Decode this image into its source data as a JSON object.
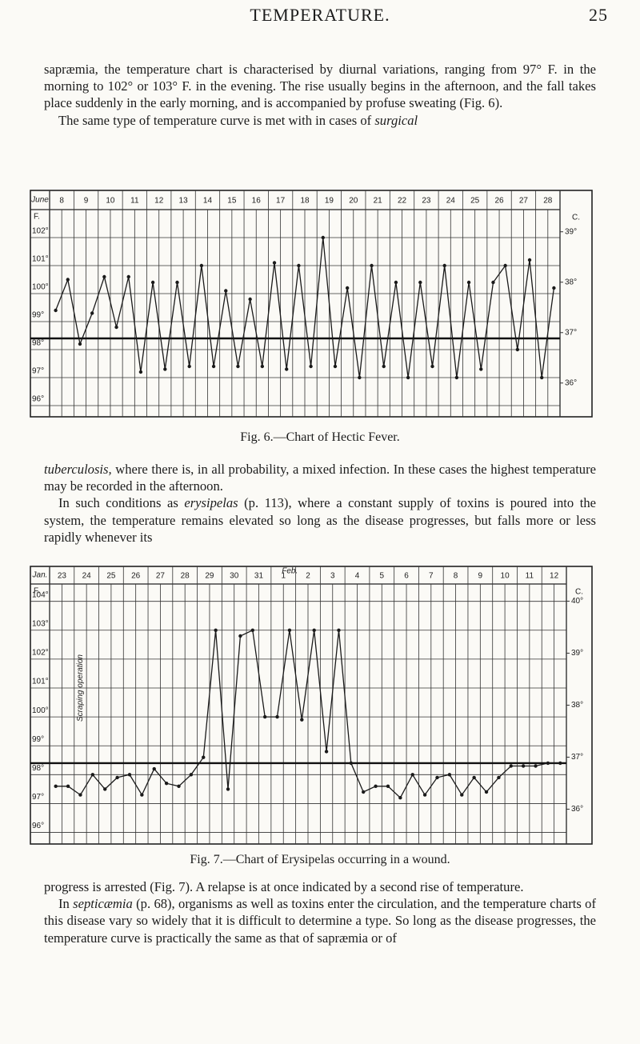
{
  "header": {
    "title": "TEMPERATURE.",
    "page": "25"
  },
  "paragraphs": [
    {
      "indent": false,
      "runs": [
        {
          "text": "sapræmia, the temperature chart is characterised by diurnal variations, ranging from 97° F. in the morning to 102° or 103° F. in the evening. The rise usually begins in the afternoon, and the fall takes place suddenly in the early morning, and is accompanied by profuse sweating (Fig. 6).",
          "italic": false
        }
      ]
    },
    {
      "indent": true,
      "runs": [
        {
          "text": "The same type of temperature curve is met with in cases of ",
          "italic": false
        },
        {
          "text": "surgical",
          "italic": true
        }
      ]
    },
    {
      "indent": false,
      "runs": [
        {
          "text": "tuberculosis,",
          "italic": true
        },
        {
          "text": " where there is, in all probability, a mixed infection. In these cases the highest temperature may be recorded in the afternoon.",
          "italic": false
        }
      ]
    },
    {
      "indent": true,
      "runs": [
        {
          "text": "In such conditions as ",
          "italic": false
        },
        {
          "text": "erysipelas",
          "italic": true
        },
        {
          "text": " (p. 113), where a constant supply of toxins is poured into the system, the temperature remains elevated so long as the disease progresses, but falls more or less rapidly whenever its",
          "italic": false
        }
      ]
    },
    {
      "indent": false,
      "runs": [
        {
          "text": "progress is arrested (Fig. 7). A relapse is at once indicated by a second rise of temperature.",
          "italic": false
        }
      ]
    },
    {
      "indent": true,
      "runs": [
        {
          "text": "In ",
          "italic": false
        },
        {
          "text": "septicæmia",
          "italic": true
        },
        {
          "text": " (p. 68), organisms as well as toxins enter the circulation, and the temperature charts of this disease vary so widely that it is difficult to determine a type. So long as the disease progresses, the temperature curve is practically the same as that of sapræmia or of",
          "italic": false
        }
      ]
    }
  ],
  "chart_data": [
    {
      "type": "line",
      "title": "Fig. 6.—Chart of Hectic Fever.",
      "month": "June",
      "y_label": "F.",
      "y2_label": "C.",
      "color": "#1a1a1a",
      "categories": [
        "8",
        null,
        "9",
        null,
        "10",
        null,
        "11",
        null,
        "12",
        null,
        "13",
        null,
        "14",
        null,
        "15",
        null,
        "16",
        null,
        "17",
        null,
        "18",
        null,
        "19",
        null,
        "20",
        null,
        "21",
        null,
        "22",
        null,
        "23",
        null,
        "24",
        null,
        "25",
        null,
        "26",
        null,
        "27",
        null,
        "28",
        null
      ],
      "values": [
        99.4,
        100.5,
        98.2,
        99.3,
        100.6,
        98.8,
        100.6,
        97.2,
        100.4,
        97.3,
        100.4,
        97.4,
        101.0,
        97.4,
        100.1,
        97.4,
        99.8,
        97.4,
        101.1,
        97.3,
        101.0,
        97.4,
        102.0,
        97.4,
        100.2,
        97.0,
        101.0,
        97.4,
        100.4,
        97.0,
        100.4,
        97.4,
        101.0,
        97.0,
        100.4,
        97.3,
        100.4,
        101.0,
        98.0,
        101.2,
        97.0,
        100.2
      ],
      "ylim": [
        95.6,
        103
      ],
      "yticks": [
        {
          "value": 96,
          "label": "96°"
        },
        {
          "value": 97,
          "label": "97°"
        },
        {
          "value": 98,
          "label": "98°"
        },
        {
          "value": 99,
          "label": "99°"
        },
        {
          "value": 100,
          "label": "100°"
        },
        {
          "value": 101,
          "label": "101°"
        },
        {
          "value": 102,
          "label": "102°"
        }
      ],
      "y2lim": [
        35.33,
        39.44
      ],
      "y2ticks": [
        {
          "value": 36,
          "label": "36°"
        },
        {
          "value": 37,
          "label": "37°"
        },
        {
          "value": 38,
          "label": "38°"
        },
        {
          "value": 39,
          "label": "39°"
        }
      ],
      "reference_line": 98.4
    },
    {
      "type": "line",
      "title": "Fig. 7.—Chart of Erysipelas occurring in a wound.",
      "month": "Jan.",
      "second_month": "Feb.",
      "annotation": "Scraping operation",
      "y_label": "F.",
      "y2_label": "C.",
      "color": "#1a1a1a",
      "categories": [
        "23",
        null,
        "24",
        null,
        "25",
        null,
        "26",
        null,
        "27",
        null,
        "28",
        null,
        "29",
        null,
        "30",
        null,
        "31",
        null,
        "1",
        null,
        "2",
        null,
        "3",
        null,
        "4",
        null,
        "5",
        null,
        "6",
        null,
        "7",
        null,
        "8",
        null,
        "9",
        null,
        "10",
        null,
        "11",
        null,
        "12",
        null
      ],
      "values": [
        97.6,
        97.6,
        97.3,
        98.0,
        97.5,
        97.9,
        98.0,
        97.3,
        98.2,
        97.7,
        97.6,
        98.0,
        98.6,
        103.0,
        97.5,
        102.8,
        103.0,
        100.0,
        100.0,
        103.0,
        99.9,
        103.0,
        98.8,
        103.0,
        98.4,
        97.4,
        97.6,
        97.6,
        97.2,
        98.0,
        97.3,
        97.9,
        98.0,
        97.3,
        97.9,
        97.4,
        97.9,
        98.3,
        98.3,
        98.3,
        98.4,
        98.4
      ],
      "ylim": [
        95.6,
        104.6
      ],
      "yticks": [
        {
          "value": 96,
          "label": "96°"
        },
        {
          "value": 97,
          "label": "97°"
        },
        {
          "value": 98,
          "label": "98°"
        },
        {
          "value": 99,
          "label": "99°"
        },
        {
          "value": 100,
          "label": "100°"
        },
        {
          "value": 101,
          "label": "101°"
        },
        {
          "value": 102,
          "label": "102°"
        },
        {
          "value": 103,
          "label": "103°"
        },
        {
          "value": 104,
          "label": "104°"
        }
      ],
      "y2lim": [
        35.33,
        40.33
      ],
      "y2ticks": [
        {
          "value": 36,
          "label": "36°"
        },
        {
          "value": 37,
          "label": "37°"
        },
        {
          "value": 38,
          "label": "38°"
        },
        {
          "value": 39,
          "label": "39°"
        },
        {
          "value": 40,
          "label": "40°"
        }
      ],
      "reference_line": 98.4
    }
  ]
}
